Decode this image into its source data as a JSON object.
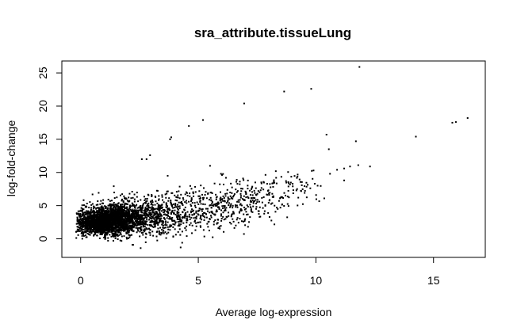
{
  "chart_data": {
    "type": "scatter",
    "title": "sra_attribute.tissueLung",
    "xlabel": "Average log-expression",
    "ylabel": "log-fold-change",
    "xlim": [
      -0.8,
      17.2
    ],
    "ylim": [
      -2.8,
      26.8
    ],
    "x_ticks": [
      0,
      5,
      10,
      15
    ],
    "y_ticks": [
      0,
      5,
      10,
      15,
      20,
      25
    ],
    "grid": false,
    "legend": "none",
    "point_color": "#000000",
    "points": [
      {
        "x": 11.85,
        "y": 25.9
      },
      {
        "x": 9.8,
        "y": 22.6
      },
      {
        "x": 8.65,
        "y": 22.2
      },
      {
        "x": 6.95,
        "y": 20.4
      },
      {
        "x": 5.2,
        "y": 17.9
      },
      {
        "x": 4.6,
        "y": 17.0
      },
      {
        "x": 16.45,
        "y": 18.2
      },
      {
        "x": 15.95,
        "y": 17.6
      },
      {
        "x": 15.8,
        "y": 17.5
      },
      {
        "x": 14.25,
        "y": 15.4
      },
      {
        "x": 10.45,
        "y": 15.7
      },
      {
        "x": 11.7,
        "y": 14.7
      },
      {
        "x": 10.55,
        "y": 13.5
      },
      {
        "x": 3.85,
        "y": 15.3
      },
      {
        "x": 3.8,
        "y": 15.0
      },
      {
        "x": 2.95,
        "y": 12.6
      },
      {
        "x": 2.6,
        "y": 12.0
      },
      {
        "x": 2.8,
        "y": 12.0
      },
      {
        "x": 5.5,
        "y": 11.0
      },
      {
        "x": 11.45,
        "y": 10.9
      },
      {
        "x": 12.3,
        "y": 10.9
      },
      {
        "x": 11.8,
        "y": 11.1
      },
      {
        "x": 9.9,
        "y": 10.3
      },
      {
        "x": 10.9,
        "y": 10.4
      },
      {
        "x": 11.2,
        "y": 10.6
      },
      {
        "x": 9.95,
        "y": 8.3
      },
      {
        "x": 11.2,
        "y": 8.8
      },
      {
        "x": 10.6,
        "y": 9.8
      },
      {
        "x": 8.9,
        "y": 8.2
      },
      {
        "x": 9.2,
        "y": 7.5
      },
      {
        "x": 3.7,
        "y": 9.5
      },
      {
        "x": 2.55,
        "y": -1.4
      },
      {
        "x": 4.25,
        "y": -1.3
      },
      {
        "x": 2.2,
        "y": -0.9
      }
    ],
    "cloud": [
      {
        "x_center": 0.8,
        "y_center": 2.3,
        "x_spread": 0.55,
        "y_spread": 0.9,
        "count": 1400
      },
      {
        "x_center": 1.6,
        "y_center": 3.1,
        "x_spread": 0.7,
        "y_spread": 1.1,
        "count": 1100
      },
      {
        "x_center": 2.8,
        "y_center": 3.4,
        "x_spread": 0.9,
        "y_spread": 1.4,
        "count": 500
      },
      {
        "x_center": 4.5,
        "y_center": 4.0,
        "x_spread": 1.0,
        "y_spread": 1.7,
        "count": 320
      },
      {
        "x_center": 6.3,
        "y_center": 5.2,
        "x_spread": 0.9,
        "y_spread": 1.8,
        "count": 220
      },
      {
        "x_center": 8.0,
        "y_center": 6.8,
        "x_spread": 0.8,
        "y_spread": 1.7,
        "count": 110
      },
      {
        "x_center": 9.5,
        "y_center": 8.3,
        "x_spread": 0.6,
        "y_spread": 1.4,
        "count": 35
      }
    ]
  }
}
